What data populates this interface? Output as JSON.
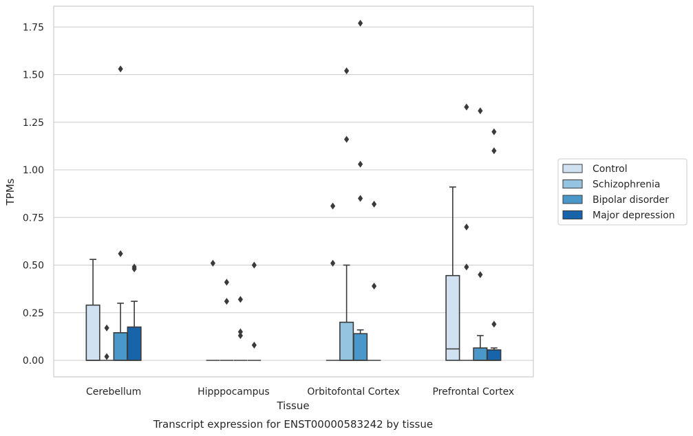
{
  "chart_data": {
    "type": "box",
    "xlabel": "Tissue",
    "ylabel": "TPMs",
    "caption": "Transcript expression for ENST00000583242 by tissue",
    "ylim": [
      -0.085,
      1.86
    ],
    "yticks": [
      "0.00",
      "0.25",
      "0.50",
      "0.75",
      "1.00",
      "1.25",
      "1.50",
      "1.75"
    ],
    "ytick_values": [
      0,
      0.25,
      0.5,
      0.75,
      1.0,
      1.25,
      1.5,
      1.75
    ],
    "grid": "horizontal",
    "legend_placement": "right",
    "categories": [
      "Cerebellum",
      "Hipppocampus",
      "Orbitofontal Cortex",
      "Prefrontal Cortex"
    ],
    "series": [
      {
        "name": "Control",
        "color": "#d0e1f2",
        "boxes": [
          {
            "q1": 0,
            "median": 0,
            "q3": 0.29,
            "whisker_low": 0,
            "whisker_high": 0.53,
            "outliers": []
          },
          {
            "q1": 0,
            "median": 0,
            "q3": 0,
            "whisker_low": 0,
            "whisker_high": 0,
            "outliers": [
              0.51
            ]
          },
          {
            "q1": 0,
            "median": 0,
            "q3": 0,
            "whisker_low": 0,
            "whisker_high": 0,
            "outliers": [
              0.51,
              0.81
            ]
          },
          {
            "q1": 0,
            "median": 0.06,
            "q3": 0.445,
            "whisker_low": 0,
            "whisker_high": 0.91,
            "outliers": []
          }
        ]
      },
      {
        "name": "Schizophrenia",
        "color": "#94c4df",
        "boxes": [
          {
            "q1": 0,
            "median": 0,
            "q3": 0,
            "whisker_low": 0,
            "whisker_high": 0,
            "outliers": [
              0.02,
              0.17
            ]
          },
          {
            "q1": 0,
            "median": 0,
            "q3": 0,
            "whisker_low": 0,
            "whisker_high": 0,
            "outliers": [
              0.31,
              0.41
            ]
          },
          {
            "q1": 0,
            "median": 0,
            "q3": 0.2,
            "whisker_low": 0,
            "whisker_high": 0.5,
            "outliers": [
              1.16,
              1.52
            ]
          },
          {
            "q1": 0,
            "median": 0,
            "q3": 0,
            "whisker_low": 0,
            "whisker_high": 0,
            "outliers": [
              0.49,
              0.7,
              1.33
            ]
          }
        ]
      },
      {
        "name": "Bipolar disorder",
        "color": "#4a98c9",
        "boxes": [
          {
            "q1": 0,
            "median": 0,
            "q3": 0.145,
            "whisker_low": 0,
            "whisker_high": 0.3,
            "outliers": [
              0.56,
              1.53
            ]
          },
          {
            "q1": 0,
            "median": 0,
            "q3": 0,
            "whisker_low": 0,
            "whisker_high": 0,
            "outliers": [
              0.13,
              0.15,
              0.32
            ]
          },
          {
            "q1": 0,
            "median": 0,
            "q3": 0.14,
            "whisker_low": 0,
            "whisker_high": 0.16,
            "outliers": [
              0.85,
              1.03,
              1.77
            ]
          },
          {
            "q1": 0,
            "median": 0,
            "q3": 0.065,
            "whisker_low": 0,
            "whisker_high": 0.13,
            "outliers": [
              0.45,
              1.31
            ]
          }
        ]
      },
      {
        "name": "Major depression",
        "color": "#1764ab",
        "boxes": [
          {
            "q1": 0,
            "median": 0,
            "q3": 0.175,
            "whisker_low": 0,
            "whisker_high": 0.31,
            "outliers": [
              0.48,
              0.49
            ]
          },
          {
            "q1": 0,
            "median": 0,
            "q3": 0,
            "whisker_low": 0,
            "whisker_high": 0,
            "outliers": [
              0.08,
              0.5
            ]
          },
          {
            "q1": 0,
            "median": 0,
            "q3": 0,
            "whisker_low": 0,
            "whisker_high": 0,
            "outliers": [
              0.39,
              0.82
            ]
          },
          {
            "q1": 0,
            "median": 0,
            "q3": 0.055,
            "whisker_low": 0,
            "whisker_high": 0.065,
            "outliers": [
              0.19,
              1.1,
              1.2
            ]
          }
        ]
      }
    ]
  }
}
